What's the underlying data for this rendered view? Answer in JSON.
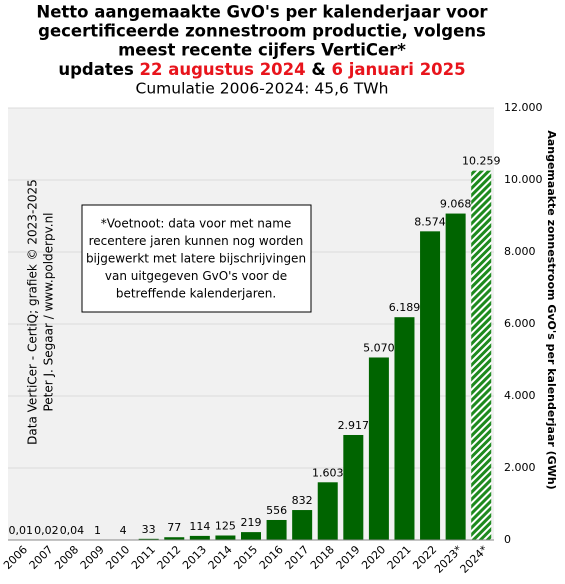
{
  "chart_data": {
    "type": "bar",
    "title": [
      "Netto aangemaakte GvO's per kalenderjaar voor",
      "gecertificeerde zonnestroom productie, volgens",
      "meest recente cijfers VertiCer*"
    ],
    "title_updates": [
      "updates ",
      "22 augustus 2024",
      " & ",
      "6 januari 2025"
    ],
    "title_updates_colors": [
      "#000000",
      "#e8141c",
      "#000000",
      "#e8141c"
    ],
    "subtitle": "Cumulatie 2006-2024: 45,6 TWh",
    "y_label": "Aangemaakte zonnestroom GvO's per kalenderjaar (GWh)",
    "credits": [
      "Data VertiCer - CertiQ; grafiek © 2023-2025",
      "Peter J. Segaar / www.polderpv.nl"
    ],
    "footnote": [
      "*Voetnoot: data voor met name",
      "recentere jaren kunnen nog worden",
      "bijgewerkt met latere bijschrijvingen",
      "van uitgegeven GvO's voor de",
      "betreffende kalenderjaren."
    ],
    "categories": [
      "2006",
      "2007",
      "2008",
      "2009",
      "2010",
      "2011",
      "2012",
      "2013",
      "2014",
      "2015",
      "2016",
      "2017",
      "2018",
      "2019",
      "2020",
      "2021",
      "2022",
      "2023*",
      "2024*"
    ],
    "values": [
      0.01,
      0.02,
      0.04,
      1,
      4,
      33,
      77,
      114,
      125,
      219,
      556,
      832,
      1603,
      2917,
      5070,
      6189,
      8574,
      9068,
      10259
    ],
    "value_labels": [
      "0,01",
      "0,02",
      "0,04",
      "1",
      "4",
      "33",
      "77",
      "114",
      "125",
      "219",
      "556",
      "832",
      "1.603",
      "2.917",
      "5.070",
      "6.189",
      "8.574",
      "9.068",
      "10.259"
    ],
    "hatched": [
      false,
      false,
      false,
      false,
      false,
      false,
      false,
      false,
      false,
      false,
      false,
      false,
      false,
      false,
      false,
      false,
      false,
      false,
      true
    ],
    "color": "#006400",
    "ylim": [
      0,
      12000
    ],
    "yticks": [
      0,
      {
        "value": 2000,
        "label": "2.000"
      },
      {
        "value": 4000,
        "label": "4.000"
      },
      {
        "value": 6000,
        "label": "6.000"
      },
      {
        "value": 8000,
        "label": "8.000"
      },
      {
        "value": 10000,
        "label": "10.000"
      },
      {
        "value": 12000,
        "label": "12.000"
      }
    ],
    "y_axis_side": "right",
    "grid": true
  }
}
